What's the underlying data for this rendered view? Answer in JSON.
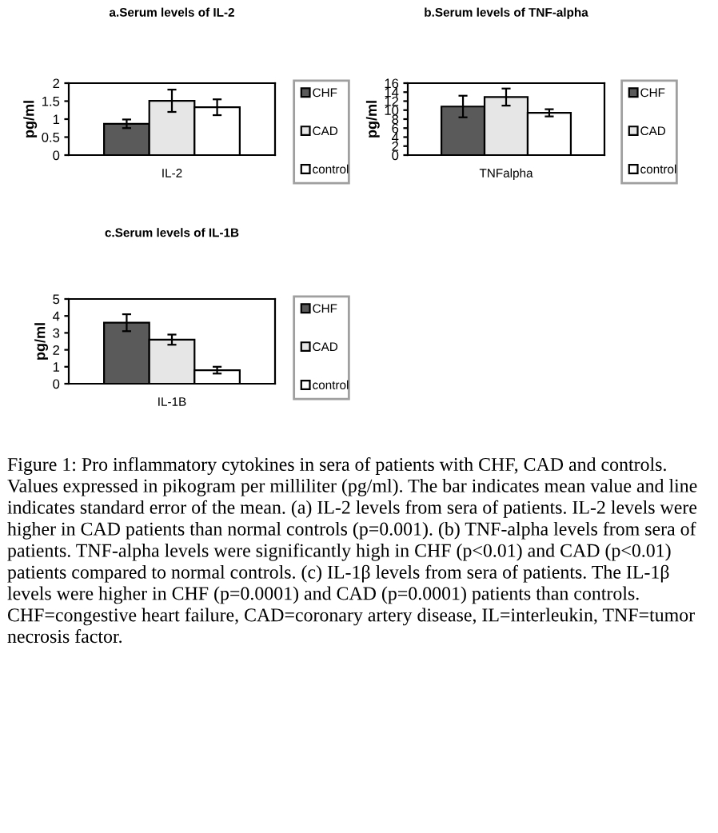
{
  "chart_data": [
    {
      "type": "bar",
      "title": "a.Serum levels of IL-2",
      "xlabel": "IL-2",
      "ylabel": "pg/ml",
      "categories": [
        null,
        null,
        null
      ],
      "series": [
        {
          "name": "CHF",
          "color": "#5a5a5a",
          "values": [
            0.87,
            null,
            null
          ],
          "errors": [
            0.12,
            null,
            null
          ]
        },
        {
          "name": "CAD",
          "color": "#e6e6e6",
          "values": [
            null,
            1.51,
            null
          ],
          "errors": [
            null,
            0.31,
            null
          ]
        },
        {
          "name": "control",
          "color": "#ffffff",
          "values": [
            null,
            null,
            1.33
          ],
          "errors": [
            null,
            null,
            0.22
          ]
        }
      ],
      "ylim": [
        0,
        2
      ],
      "yticks": [
        0,
        0.5,
        1,
        1.5,
        2
      ],
      "grid": false,
      "legend": "right"
    },
    {
      "type": "bar",
      "title": "b.Serum levels of TNF-alpha",
      "xlabel": "TNFalpha",
      "ylabel": "pg/ml",
      "categories": [
        null,
        null,
        null
      ],
      "series": [
        {
          "name": "CHF",
          "color": "#5a5a5a",
          "values": [
            10.8,
            null,
            null
          ],
          "errors": [
            2.4,
            null,
            null
          ]
        },
        {
          "name": "CAD",
          "color": "#e6e6e6",
          "values": [
            null,
            12.9,
            null
          ],
          "errors": [
            null,
            1.9,
            null
          ]
        },
        {
          "name": "control",
          "color": "#ffffff",
          "values": [
            null,
            null,
            9.4
          ],
          "errors": [
            null,
            null,
            0.8
          ]
        }
      ],
      "ylim": [
        0,
        16
      ],
      "yticks": [
        0,
        2,
        4,
        6,
        8,
        10,
        12,
        14,
        16
      ],
      "grid": false,
      "legend": "right"
    },
    {
      "type": "bar",
      "title": "c.Serum levels of IL-1B",
      "xlabel": "IL-1B",
      "ylabel": "pg/ml",
      "categories": [
        null,
        null,
        null
      ],
      "series": [
        {
          "name": "CHF",
          "color": "#5a5a5a",
          "values": [
            3.6,
            null,
            null
          ],
          "errors": [
            0.5,
            null,
            null
          ]
        },
        {
          "name": "CAD",
          "color": "#e6e6e6",
          "values": [
            null,
            2.6,
            null
          ],
          "errors": [
            null,
            0.3,
            null
          ]
        },
        {
          "name": "control",
          "color": "#ffffff",
          "values": [
            null,
            null,
            0.8
          ],
          "errors": [
            null,
            null,
            0.2
          ]
        }
      ],
      "ylim": [
        0,
        5
      ],
      "yticks": [
        0,
        1,
        2,
        3,
        4,
        5
      ],
      "grid": false,
      "legend": "right",
      "annotations": [
        "Figure 1: Pro inflammatory cytokines in sera of patients with CHF, CAD and controls. Values expressed in pikogram per milliliter (pg/ml). The bar indicates mean value and line indicates standard error of the mean. (a) IL-2 levels from sera of patients. IL-2 levels were higher in CAD patients than normal controls (p=0.001). (b) TNF-alpha levels from sera of patients. TNF-alpha levels were significantly high in CHF (p<0.01) and CAD (p<0.01) patients compared to normal controls. (c) IL-1β levels from sera of patients. The IL-1β levels were higher in CHF (p=0.0001) and CAD (p=0.0001) patients than controls. CHF=congestive heart failure, CAD=coronary artery disease, IL=interleukin, TNF=tumor necrosis factor."
      ]
    }
  ]
}
